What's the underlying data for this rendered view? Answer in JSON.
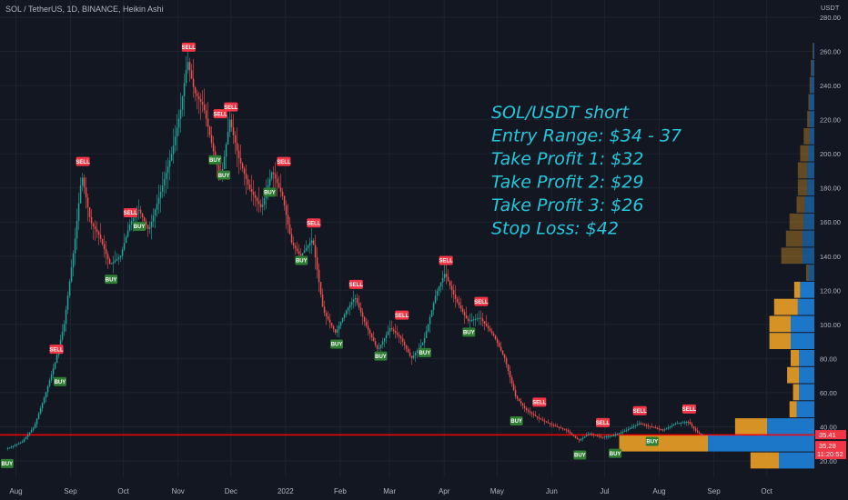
{
  "header": {
    "title": "SOL / TetherUS, 1D, BINANCE, Heikin Ashi"
  },
  "axis": {
    "currency": "USDT",
    "y_ticks": [
      "280.00",
      "260.00",
      "240.00",
      "220.00",
      "200.00",
      "180.00",
      "160.00",
      "140.00",
      "120.00",
      "100.00",
      "80.00",
      "60.00",
      "40.00",
      "20.00"
    ],
    "x_ticks": [
      "Aug",
      "Sep",
      "Oct",
      "Nov",
      "Dec",
      "2022",
      "Feb",
      "Mar",
      "Apr",
      "May",
      "Jun",
      "Jul",
      "Aug",
      "Sep",
      "Oct"
    ]
  },
  "annotation": {
    "lines": [
      "SOL/USDT short",
      "Entry Range: $34 - 37",
      "Take Profit 1: $32",
      "Take Profit 2: $29",
      "Take Profit 3: $26",
      "Stop Loss: $42"
    ],
    "color": "#26c6da"
  },
  "price_tags": {
    "current": "35.41",
    "line_value": "35.28",
    "countdown": "11:20:52"
  },
  "colors": {
    "up": "#26a69a",
    "down": "#ef5350",
    "hline": "#ff0000",
    "bg": "#131722",
    "vp_up": "#1e88e5",
    "vp_down": "#f9a825"
  },
  "chart_data": {
    "type": "candlestick",
    "title": "SOL / TetherUS, 1D, BINANCE, Heikin Ashi",
    "ylabel": "USDT",
    "ylim": [
      10,
      290
    ],
    "horizontal_line": 35.28,
    "path": [
      [
        "2021-07-27",
        27
      ],
      [
        "2021-08-05",
        31
      ],
      [
        "2021-08-12",
        40
      ],
      [
        "2021-08-18",
        58
      ],
      [
        "2021-08-24",
        78
      ],
      [
        "2021-08-29",
        100
      ],
      [
        "2021-09-04",
        148
      ],
      [
        "2021-09-08",
        188
      ],
      [
        "2021-09-13",
        160
      ],
      [
        "2021-09-18",
        152
      ],
      [
        "2021-09-24",
        135
      ],
      [
        "2021-09-30",
        140
      ],
      [
        "2021-10-05",
        158
      ],
      [
        "2021-10-10",
        168
      ],
      [
        "2021-10-16",
        155
      ],
      [
        "2021-10-22",
        175
      ],
      [
        "2021-10-29",
        200
      ],
      [
        "2021-11-03",
        225
      ],
      [
        "2021-11-07",
        255
      ],
      [
        "2021-11-11",
        236
      ],
      [
        "2021-11-16",
        228
      ],
      [
        "2021-11-22",
        200
      ],
      [
        "2021-11-26",
        185
      ],
      [
        "2021-12-01",
        220
      ],
      [
        "2021-12-06",
        198
      ],
      [
        "2021-12-12",
        180
      ],
      [
        "2021-12-19",
        168
      ],
      [
        "2021-12-25",
        190
      ],
      [
        "2021-12-31",
        175
      ],
      [
        "2022-01-05",
        148
      ],
      [
        "2022-01-10",
        140
      ],
      [
        "2022-01-17",
        150
      ],
      [
        "2022-01-23",
        108
      ],
      [
        "2022-01-30",
        95
      ],
      [
        "2022-02-05",
        108
      ],
      [
        "2022-02-10",
        116
      ],
      [
        "2022-02-16",
        100
      ],
      [
        "2022-02-23",
        85
      ],
      [
        "2022-03-02",
        98
      ],
      [
        "2022-03-08",
        92
      ],
      [
        "2022-03-14",
        80
      ],
      [
        "2022-03-21",
        90
      ],
      [
        "2022-03-28",
        118
      ],
      [
        "2022-04-02",
        130
      ],
      [
        "2022-04-08",
        115
      ],
      [
        "2022-04-15",
        102
      ],
      [
        "2022-04-22",
        104
      ],
      [
        "2022-04-30",
        93
      ],
      [
        "2022-05-06",
        80
      ],
      [
        "2022-05-12",
        58
      ],
      [
        "2022-05-18",
        50
      ],
      [
        "2022-05-25",
        45
      ],
      [
        "2022-06-02",
        41
      ],
      [
        "2022-06-10",
        38
      ],
      [
        "2022-06-17",
        32
      ],
      [
        "2022-06-23",
        36
      ],
      [
        "2022-06-30",
        34
      ],
      [
        "2022-07-07",
        35
      ],
      [
        "2022-07-14",
        38
      ],
      [
        "2022-07-21",
        42
      ],
      [
        "2022-07-28",
        40
      ],
      [
        "2022-08-04",
        38
      ],
      [
        "2022-08-11",
        42
      ],
      [
        "2022-08-18",
        43
      ],
      [
        "2022-08-23",
        37
      ],
      [
        "2022-08-26",
        35
      ]
    ],
    "signals": [
      {
        "label": "BUY",
        "date": "2021-07-27",
        "price": 27
      },
      {
        "label": "SELL",
        "date": "2021-08-24",
        "price": 78
      },
      {
        "label": "BUY",
        "date": "2021-08-26",
        "price": 75
      },
      {
        "label": "SELL",
        "date": "2021-09-08",
        "price": 188
      },
      {
        "label": "BUY",
        "date": "2021-09-24",
        "price": 135
      },
      {
        "label": "SELL",
        "date": "2021-10-05",
        "price": 158
      },
      {
        "label": "BUY",
        "date": "2021-10-10",
        "price": 166
      },
      {
        "label": "SELL",
        "date": "2021-11-07",
        "price": 255
      },
      {
        "label": "SELL",
        "date": "2021-11-25",
        "price": 216
      },
      {
        "label": "BUY",
        "date": "2021-11-22",
        "price": 205
      },
      {
        "label": "SELL",
        "date": "2021-12-01",
        "price": 220
      },
      {
        "label": "BUY",
        "date": "2021-11-27",
        "price": 196
      },
      {
        "label": "BUY",
        "date": "2021-12-23",
        "price": 186
      },
      {
        "label": "SELL",
        "date": "2021-12-31",
        "price": 188
      },
      {
        "label": "SELL",
        "date": "2022-01-17",
        "price": 152
      },
      {
        "label": "BUY",
        "date": "2022-01-10",
        "price": 146
      },
      {
        "label": "BUY",
        "date": "2022-01-30",
        "price": 97
      },
      {
        "label": "SELL",
        "date": "2022-02-10",
        "price": 116
      },
      {
        "label": "BUY",
        "date": "2022-02-24",
        "price": 90
      },
      {
        "label": "SELL",
        "date": "2022-03-08",
        "price": 98
      },
      {
        "label": "BUY",
        "date": "2022-03-21",
        "price": 92
      },
      {
        "label": "SELL",
        "date": "2022-04-02",
        "price": 130
      },
      {
        "label": "BUY",
        "date": "2022-04-15",
        "price": 104
      },
      {
        "label": "SELL",
        "date": "2022-04-22",
        "price": 106
      },
      {
        "label": "BUY",
        "date": "2022-05-12",
        "price": 52
      },
      {
        "label": "SELL",
        "date": "2022-05-25",
        "price": 47
      },
      {
        "label": "BUY",
        "date": "2022-06-17",
        "price": 32
      },
      {
        "label": "SELL",
        "date": "2022-06-30",
        "price": 35
      },
      {
        "label": "BUY",
        "date": "2022-07-07",
        "price": 33
      },
      {
        "label": "SELL",
        "date": "2022-07-21",
        "price": 42
      },
      {
        "label": "BUY",
        "date": "2022-07-28",
        "price": 40
      },
      {
        "label": "SELL",
        "date": "2022-08-18",
        "price": 43
      }
    ],
    "volume_profile": [
      {
        "price": 20,
        "up": 0.3,
        "down": 0.24
      },
      {
        "price": 30,
        "up": 0.9,
        "down": 0.75
      },
      {
        "price": 40,
        "up": 0.4,
        "down": 0.27
      },
      {
        "price": 50,
        "up": 0.15,
        "down": 0.06
      },
      {
        "price": 60,
        "up": 0.13,
        "down": 0.05
      },
      {
        "price": 70,
        "up": 0.13,
        "down": 0.1
      },
      {
        "price": 80,
        "up": 0.13,
        "down": 0.07
      },
      {
        "price": 90,
        "up": 0.2,
        "down": 0.18
      },
      {
        "price": 100,
        "up": 0.2,
        "down": 0.18
      },
      {
        "price": 110,
        "up": 0.14,
        "down": 0.2
      },
      {
        "price": 120,
        "up": 0.12,
        "down": 0.05
      },
      {
        "price": 130,
        "up": 0.05,
        "down": 0.02
      },
      {
        "price": 140,
        "up": 0.1,
        "down": 0.18
      },
      {
        "price": 150,
        "up": 0.1,
        "down": 0.14
      },
      {
        "price": 160,
        "up": 0.09,
        "down": 0.12
      },
      {
        "price": 170,
        "up": 0.08,
        "down": 0.07
      },
      {
        "price": 180,
        "up": 0.06,
        "down": 0.08
      },
      {
        "price": 190,
        "up": 0.06,
        "down": 0.08
      },
      {
        "price": 200,
        "up": 0.05,
        "down": 0.07
      },
      {
        "price": 210,
        "up": 0.04,
        "down": 0.05
      },
      {
        "price": 220,
        "up": 0.04,
        "down": 0.02
      },
      {
        "price": 230,
        "up": 0.04,
        "down": 0.01
      },
      {
        "price": 240,
        "up": 0.03,
        "down": 0.01
      },
      {
        "price": 250,
        "up": 0.02,
        "down": 0.01
      },
      {
        "price": 260,
        "up": 0.01,
        "down": 0.005
      }
    ]
  }
}
